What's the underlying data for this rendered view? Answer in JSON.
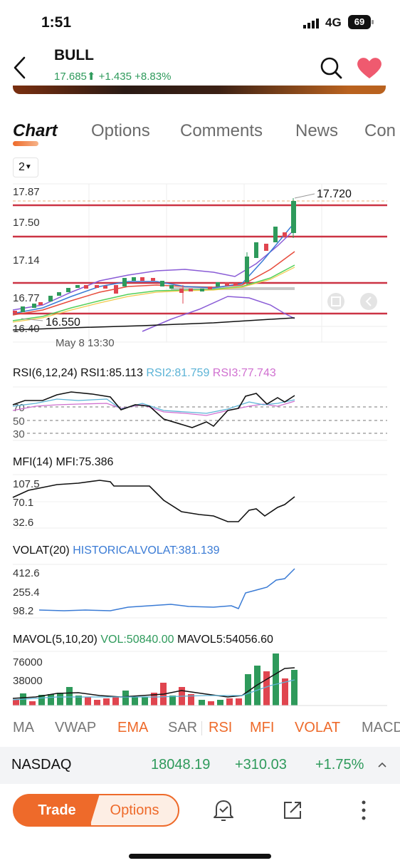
{
  "status_bar": {
    "time": "1:51",
    "network": "4G",
    "battery": "69"
  },
  "header": {
    "ticker": "BULL",
    "price": "17.685",
    "change": "+1.435",
    "change_pct": "+8.83%"
  },
  "tabs": [
    "Chart",
    "Options",
    "Comments",
    "News",
    "Con"
  ],
  "timeframe": "2",
  "main_chart": {
    "y_ticks": [
      "17.87",
      "17.50",
      "17.14",
      "16.77",
      "16.40"
    ],
    "high_label": "17.720",
    "low_label": "16.550",
    "date_label": "May 8 13:30"
  },
  "rsi": {
    "title": "RSI(6,12,24)",
    "rsi1": "RSI1:85.113",
    "rsi2": "RSI2:81.759",
    "rsi3": "RSI3:77.743",
    "levels": [
      "70",
      "50",
      "30"
    ],
    "color1": "#111111",
    "color2": "#5bb3d6",
    "color3": "#d070d0"
  },
  "mfi": {
    "title": "MFI(14)",
    "value": "MFI:75.386",
    "ticks": [
      "107.5",
      "70.1",
      "32.6"
    ]
  },
  "volat": {
    "title": "VOLAT(20)",
    "value": "HISTORICALVOLAT:381.139",
    "ticks": [
      "412.6",
      "255.4",
      "98.2"
    ],
    "color": "#3a7bd5"
  },
  "mavol": {
    "title": "MAVOL(5,10,20)",
    "vol": "VOL:50840.00",
    "mavol5": "MAVOL5:54056.60",
    "ticks": [
      "76000",
      "38000"
    ]
  },
  "indicators": [
    "MA",
    "VWAP",
    "EMA",
    "SAR",
    "RSI",
    "MFI",
    "VOLAT",
    "MACD"
  ],
  "indicators_active": [
    "EMA",
    "RSI",
    "MFI",
    "VOLAT"
  ],
  "index_bar": {
    "name": "NASDAQ",
    "value": "18048.19",
    "change": "+310.03",
    "change_pct": "+1.75%"
  },
  "actions": {
    "trade": "Trade",
    "options": "Options"
  },
  "icons": [
    "back-chevron-icon",
    "search-icon",
    "heart-icon",
    "bell-icon",
    "share-icon",
    "more-vert-icon",
    "up-arrow-icon",
    "expand-icon"
  ],
  "colors": {
    "up": "#2e9a5b",
    "down": "#e0454f",
    "accent": "#ee6a2a",
    "heart": "#ef5a6f"
  }
}
